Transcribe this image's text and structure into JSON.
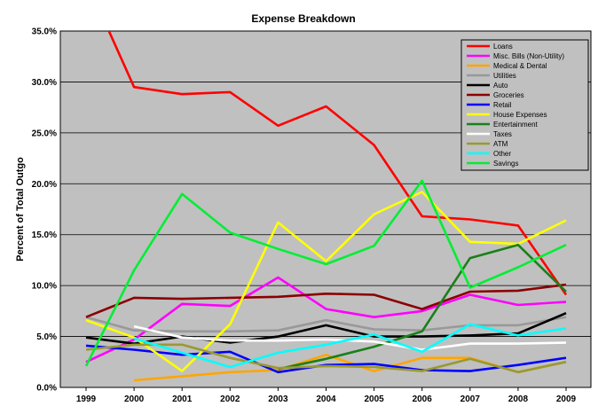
{
  "chart_data": {
    "type": "line",
    "title": "Expense Breakdown",
    "xlabel": "",
    "ylabel": "Percent of Total Outgo",
    "x": [
      "1999",
      "2000",
      "2001",
      "2002",
      "2003",
      "2004",
      "2005",
      "2006",
      "2007",
      "2008",
      "2009"
    ],
    "ylim": [
      0,
      35
    ],
    "yticks": [
      0,
      5,
      10,
      15,
      20,
      25,
      30,
      35
    ],
    "ytick_labels": [
      "0.0%",
      "5.0%",
      "10.0%",
      "15.0%",
      "20.0%",
      "25.0%",
      "30.0%",
      "35.0%"
    ],
    "grid": true,
    "legend_position": "top-right",
    "series": [
      {
        "name": "Loans",
        "color": "#ff0000",
        "values": [
          40.0,
          29.5,
          28.8,
          29.0,
          25.7,
          27.6,
          23.8,
          16.8,
          16.5,
          15.9,
          9.1
        ]
      },
      {
        "name": "Misc. Bills (Non-Utility)",
        "color": "#ff00ff",
        "values": [
          2.5,
          4.7,
          8.2,
          8.0,
          10.8,
          7.7,
          6.9,
          7.5,
          9.1,
          8.1,
          8.4
        ]
      },
      {
        "name": "Medical & Dental",
        "color": "#ffa500",
        "values": [
          null,
          0.7,
          1.1,
          1.5,
          1.7,
          3.2,
          1.6,
          2.9,
          2.9,
          1.5,
          2.5
        ]
      },
      {
        "name": "Utilities",
        "color": "#999999",
        "values": [
          6.9,
          5.6,
          5.5,
          5.5,
          5.6,
          6.6,
          5.7,
          5.6,
          6.1,
          6.1,
          6.9
        ]
      },
      {
        "name": "Auto",
        "color": "#000000",
        "values": [
          4.9,
          4.3,
          5.0,
          4.4,
          5.0,
          6.1,
          5.0,
          5.0,
          5.1,
          5.3,
          7.3
        ]
      },
      {
        "name": "Groceries",
        "color": "#8b0000",
        "values": [
          6.9,
          8.8,
          8.7,
          8.8,
          8.9,
          9.2,
          9.1,
          7.7,
          9.4,
          9.5,
          10.1
        ]
      },
      {
        "name": "Retail",
        "color": "#0000ff",
        "values": [
          4.1,
          3.7,
          3.2,
          3.5,
          1.5,
          2.2,
          2.3,
          1.7,
          1.6,
          2.2,
          2.9
        ]
      },
      {
        "name": "House Expenses",
        "color": "#ffff00",
        "values": [
          6.6,
          4.9,
          1.6,
          6.2,
          16.2,
          12.4,
          17.0,
          19.2,
          14.3,
          14.1,
          16.4
        ]
      },
      {
        "name": "Entertainment",
        "color": "#1a7f1a",
        "values": [
          null,
          null,
          null,
          null,
          1.8,
          2.8,
          4.0,
          5.5,
          12.7,
          14.0,
          9.4
        ]
      },
      {
        "name": "Taxes",
        "color": "#ffffff",
        "values": [
          null,
          6.0,
          4.9,
          4.6,
          4.6,
          4.7,
          4.5,
          3.7,
          4.3,
          4.3,
          4.4
        ]
      },
      {
        "name": "ATM",
        "color": "#999933",
        "values": [
          3.7,
          4.2,
          4.2,
          2.9,
          1.9,
          2.1,
          2.0,
          1.6,
          2.8,
          1.5,
          2.5
        ]
      },
      {
        "name": "Other",
        "color": "#00ffff",
        "values": [
          null,
          4.8,
          3.4,
          2.0,
          3.4,
          4.2,
          5.2,
          3.5,
          6.2,
          5.1,
          5.8
        ]
      },
      {
        "name": "Savings",
        "color": "#00ee33",
        "values": [
          2.1,
          11.5,
          19.0,
          15.2,
          13.6,
          12.1,
          13.9,
          20.3,
          9.8,
          11.8,
          14.0
        ]
      }
    ]
  }
}
